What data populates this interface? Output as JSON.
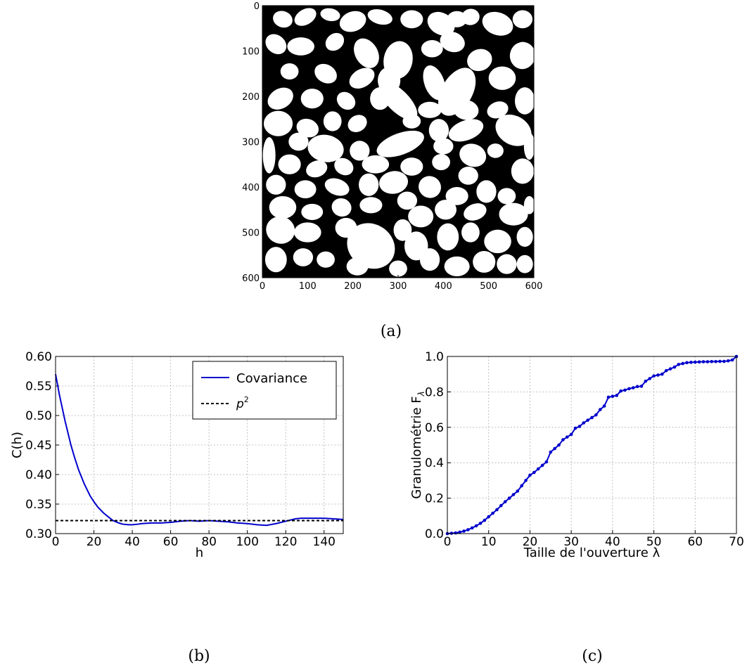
{
  "captions": {
    "a": "(a)",
    "b": "(b)",
    "c": "(c)"
  },
  "chart_data": [
    {
      "type": "heatmap",
      "description_label": "binary grain image",
      "xlim": [
        0,
        600
      ],
      "ylim": [
        600,
        0
      ],
      "x_ticks": [
        "0",
        "100",
        "200",
        "300",
        "400",
        "500",
        "600"
      ],
      "y_ticks": [
        "0",
        "100",
        "200",
        "300",
        "400",
        "500",
        "600"
      ],
      "colors": {
        "background": "#000000",
        "grains": "#ffffff"
      },
      "grains": [
        [
          45,
          30,
          22,
          18,
          20
        ],
        [
          95,
          25,
          26,
          17,
          -30
        ],
        [
          150,
          20,
          22,
          14,
          10
        ],
        [
          200,
          35,
          30,
          22,
          -20
        ],
        [
          260,
          25,
          28,
          16,
          15
        ],
        [
          330,
          30,
          25,
          20,
          0
        ],
        [
          395,
          40,
          32,
          24,
          30
        ],
        [
          460,
          25,
          20,
          18,
          -10
        ],
        [
          520,
          40,
          35,
          25,
          20
        ],
        [
          575,
          30,
          22,
          20,
          0
        ],
        [
          30,
          85,
          25,
          20,
          40
        ],
        [
          85,
          90,
          30,
          20,
          0
        ],
        [
          160,
          80,
          22,
          18,
          -40
        ],
        [
          230,
          105,
          35,
          25,
          60
        ],
        [
          300,
          120,
          32,
          42,
          10
        ],
        [
          375,
          95,
          24,
          19,
          0
        ],
        [
          420,
          80,
          28,
          22,
          20
        ],
        [
          480,
          120,
          28,
          24,
          -20
        ],
        [
          575,
          110,
          28,
          30,
          10
        ],
        [
          60,
          145,
          20,
          18,
          0
        ],
        [
          140,
          150,
          26,
          20,
          30
        ],
        [
          220,
          160,
          30,
          20,
          -30
        ],
        [
          280,
          165,
          25,
          30,
          0
        ],
        [
          380,
          170,
          22,
          40,
          -20
        ],
        [
          430,
          190,
          34,
          58,
          30
        ],
        [
          530,
          160,
          30,
          26,
          0
        ],
        [
          580,
          210,
          22,
          30,
          0
        ],
        [
          40,
          205,
          30,
          22,
          -30
        ],
        [
          110,
          205,
          25,
          22,
          0
        ],
        [
          185,
          210,
          22,
          18,
          40
        ],
        [
          260,
          205,
          22,
          25,
          0
        ],
        [
          300,
          210,
          55,
          24,
          45
        ],
        [
          370,
          230,
          26,
          18,
          0
        ],
        [
          450,
          230,
          28,
          22,
          10
        ],
        [
          520,
          230,
          24,
          18,
          -20
        ],
        [
          35,
          260,
          32,
          28,
          0
        ],
        [
          100,
          270,
          25,
          20,
          20
        ],
        [
          155,
          255,
          20,
          22,
          0
        ],
        [
          210,
          260,
          22,
          18,
          -30
        ],
        [
          330,
          255,
          20,
          16,
          0
        ],
        [
          390,
          275,
          22,
          25,
          0
        ],
        [
          450,
          275,
          40,
          22,
          -20
        ],
        [
          555,
          275,
          32,
          42,
          -60
        ],
        [
          80,
          300,
          22,
          20,
          0
        ],
        [
          140,
          315,
          40,
          30,
          10
        ],
        [
          215,
          320,
          22,
          22,
          0
        ],
        [
          305,
          305,
          55,
          24,
          -20
        ],
        [
          400,
          310,
          22,
          18,
          0
        ],
        [
          465,
          330,
          30,
          25,
          20
        ],
        [
          515,
          320,
          18,
          16,
          0
        ],
        [
          60,
          350,
          25,
          22,
          0
        ],
        [
          120,
          360,
          24,
          18,
          -20
        ],
        [
          180,
          355,
          22,
          18,
          30
        ],
        [
          250,
          350,
          30,
          20,
          0
        ],
        [
          330,
          355,
          25,
          20,
          0
        ],
        [
          395,
          345,
          20,
          18,
          0
        ],
        [
          455,
          375,
          22,
          20,
          0
        ],
        [
          575,
          365,
          25,
          28,
          0
        ],
        [
          30,
          395,
          22,
          22,
          0
        ],
        [
          95,
          405,
          24,
          20,
          0
        ],
        [
          165,
          400,
          28,
          18,
          20
        ],
        [
          235,
          395,
          22,
          25,
          0
        ],
        [
          290,
          390,
          32,
          25,
          -10
        ],
        [
          370,
          400,
          25,
          24,
          30
        ],
        [
          430,
          420,
          25,
          20,
          0
        ],
        [
          495,
          410,
          22,
          25,
          0
        ],
        [
          540,
          420,
          20,
          18,
          0
        ],
        [
          45,
          445,
          30,
          25,
          0
        ],
        [
          110,
          455,
          24,
          18,
          0
        ],
        [
          175,
          445,
          22,
          20,
          20
        ],
        [
          240,
          440,
          25,
          18,
          0
        ],
        [
          320,
          430,
          22,
          20,
          0
        ],
        [
          350,
          465,
          28,
          24,
          0
        ],
        [
          405,
          450,
          24,
          22,
          0
        ],
        [
          470,
          455,
          26,
          18,
          -20
        ],
        [
          555,
          460,
          32,
          25,
          0
        ],
        [
          40,
          495,
          32,
          30,
          20
        ],
        [
          100,
          500,
          30,
          22,
          0
        ],
        [
          185,
          490,
          24,
          22,
          0
        ],
        [
          240,
          530,
          55,
          48,
          35
        ],
        [
          310,
          495,
          20,
          24,
          0
        ],
        [
          340,
          530,
          26,
          32,
          0
        ],
        [
          410,
          510,
          24,
          30,
          0
        ],
        [
          460,
          500,
          20,
          22,
          0
        ],
        [
          520,
          520,
          30,
          26,
          0
        ],
        [
          580,
          510,
          18,
          22,
          0
        ],
        [
          30,
          560,
          24,
          28,
          0
        ],
        [
          90,
          555,
          22,
          20,
          0
        ],
        [
          140,
          560,
          20,
          18,
          0
        ],
        [
          210,
          575,
          24,
          20,
          0
        ],
        [
          300,
          580,
          20,
          18,
          0
        ],
        [
          370,
          560,
          22,
          25,
          0
        ],
        [
          430,
          575,
          28,
          22,
          0
        ],
        [
          490,
          565,
          25,
          24,
          0
        ],
        [
          540,
          570,
          22,
          22,
          0
        ],
        [
          580,
          570,
          18,
          20,
          0
        ],
        [
          15,
          330,
          14,
          40,
          0
        ],
        [
          590,
          310,
          12,
          30,
          0
        ],
        [
          430,
          30,
          22,
          18,
          0
        ],
        [
          590,
          440,
          12,
          20,
          0
        ]
      ]
    },
    {
      "type": "line",
      "xlabel": "h",
      "ylabel": "C(h)",
      "xlim": [
        0,
        150
      ],
      "ylim": [
        0.3,
        0.6
      ],
      "x_ticks": [
        "0",
        "20",
        "40",
        "60",
        "80",
        "100",
        "120",
        "140"
      ],
      "y_ticks": [
        "0.30",
        "0.35",
        "0.40",
        "0.45",
        "0.50",
        "0.55",
        "0.60"
      ],
      "grid": true,
      "legend_position": "top-right",
      "series": [
        {
          "name": "Covariance",
          "color": "#0000cc",
          "style": "solid",
          "x": [
            0,
            2,
            5,
            8,
            10,
            12,
            15,
            18,
            20,
            22,
            25,
            28,
            30,
            33,
            35,
            38,
            40,
            43,
            45,
            50,
            55,
            60,
            65,
            70,
            75,
            80,
            85,
            90,
            95,
            100,
            105,
            110,
            115,
            120,
            125,
            128,
            130,
            135,
            140,
            145,
            150
          ],
          "y": [
            0.57,
            0.535,
            0.49,
            0.45,
            0.428,
            0.408,
            0.384,
            0.364,
            0.354,
            0.345,
            0.335,
            0.327,
            0.322,
            0.318,
            0.316,
            0.315,
            0.315,
            0.316,
            0.317,
            0.318,
            0.318,
            0.319,
            0.321,
            0.322,
            0.321,
            0.322,
            0.321,
            0.32,
            0.318,
            0.317,
            0.315,
            0.314,
            0.317,
            0.321,
            0.325,
            0.326,
            0.326,
            0.326,
            0.326,
            0.325,
            0.324
          ]
        },
        {
          "name": "p²",
          "legend_base": "p",
          "legend_sup": "2",
          "color": "#000000",
          "style": "dashed",
          "x": [
            0,
            150
          ],
          "y": [
            0.322,
            0.322
          ]
        }
      ]
    },
    {
      "type": "line",
      "xlabel": "Taille de l'ouverture λ",
      "ylabel": "Granulométrie F",
      "ylabel_sub": "λ",
      "xlim": [
        0,
        70
      ],
      "ylim": [
        0.0,
        1.0
      ],
      "x_ticks": [
        "0",
        "10",
        "20",
        "30",
        "40",
        "50",
        "60",
        "70"
      ],
      "y_ticks": [
        "0.0",
        "0.2",
        "0.4",
        "0.6",
        "0.8",
        "1.0"
      ],
      "grid": true,
      "series": [
        {
          "color": "#0000cc",
          "markers": true,
          "x": [
            0,
            1,
            2,
            3,
            4,
            5,
            6,
            7,
            8,
            9,
            10,
            11,
            12,
            13,
            14,
            15,
            16,
            17,
            18,
            19,
            20,
            21,
            22,
            23,
            24,
            25,
            26,
            27,
            28,
            29,
            30,
            31,
            32,
            33,
            34,
            35,
            36,
            37,
            38,
            39,
            40,
            41,
            42,
            43,
            44,
            45,
            46,
            47,
            48,
            49,
            50,
            51,
            52,
            53,
            54,
            55,
            56,
            57,
            58,
            59,
            60,
            61,
            62,
            63,
            64,
            65,
            66,
            67,
            68,
            69,
            70
          ],
          "y": [
            0.0,
            0.002,
            0.004,
            0.008,
            0.014,
            0.022,
            0.032,
            0.044,
            0.058,
            0.075,
            0.095,
            0.115,
            0.135,
            0.158,
            0.18,
            0.2,
            0.22,
            0.24,
            0.27,
            0.3,
            0.33,
            0.345,
            0.365,
            0.385,
            0.405,
            0.46,
            0.48,
            0.5,
            0.53,
            0.545,
            0.56,
            0.595,
            0.605,
            0.625,
            0.64,
            0.655,
            0.67,
            0.7,
            0.72,
            0.77,
            0.775,
            0.78,
            0.805,
            0.81,
            0.818,
            0.823,
            0.83,
            0.832,
            0.86,
            0.875,
            0.89,
            0.895,
            0.9,
            0.92,
            0.93,
            0.94,
            0.955,
            0.96,
            0.965,
            0.967,
            0.968,
            0.969,
            0.97,
            0.97,
            0.971,
            0.971,
            0.972,
            0.972,
            0.975,
            0.98,
            1.0
          ]
        }
      ]
    }
  ]
}
